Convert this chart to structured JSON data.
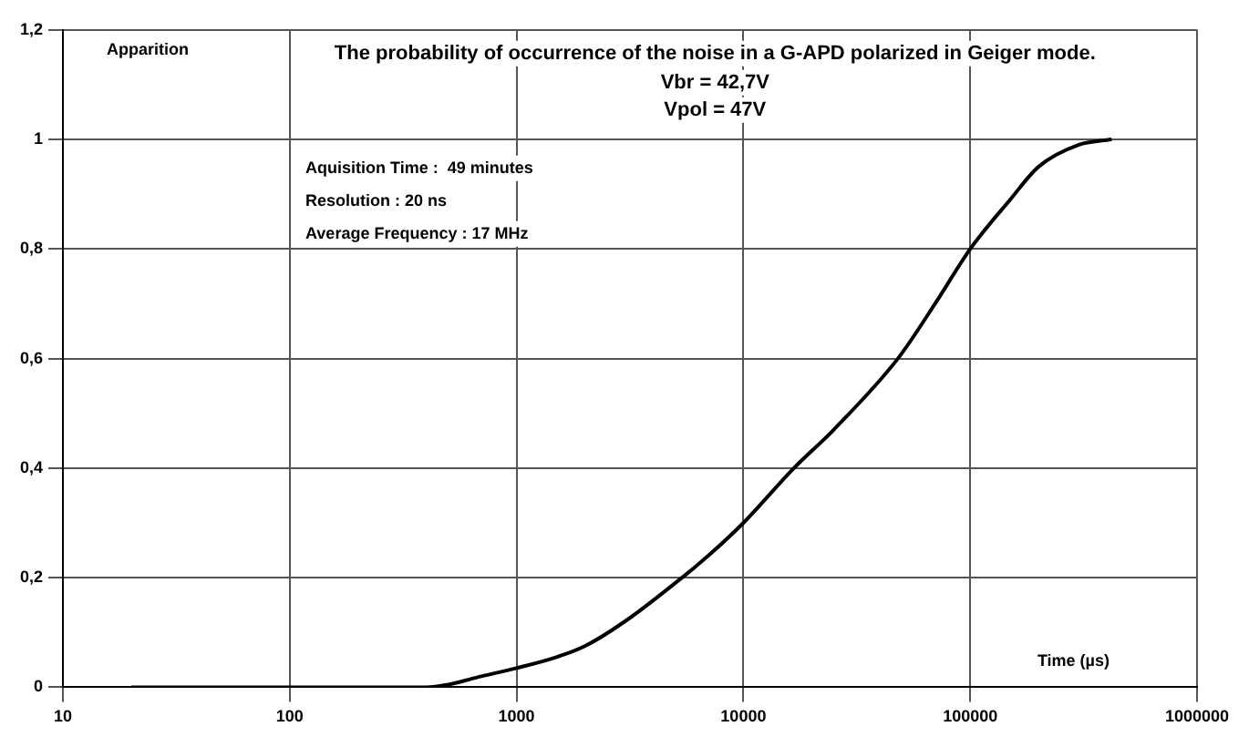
{
  "chart_data": {
    "type": "line",
    "title": "The probability of occurrence of the noise in a G-APD polarized in Geiger mode.",
    "subtitle": "Vbr = 42,7V\nVpol = 47V",
    "ylabel": "Apparition",
    "xlabel": "Time (µs)",
    "annotations": [
      "Aquisition Time :  49 minutes",
      "Resolution : 20 ns",
      "Average Frequency : 17 MHz"
    ],
    "x": [
      20,
      100,
      300,
      400,
      500,
      700,
      1000,
      1500,
      2000,
      3000,
      5000,
      7000,
      10000,
      16700,
      25000,
      48000,
      70000,
      100000,
      150000,
      200000,
      300000,
      420000
    ],
    "series": [
      {
        "color": "#000000",
        "values": [
          0,
          0,
          0,
          0,
          0.005,
          0.02,
          0.035,
          0.055,
          0.075,
          0.12,
          0.19,
          0.24,
          0.3,
          0.4,
          0.47,
          0.6,
          0.7,
          0.8,
          0.89,
          0.95,
          0.99,
          1
        ]
      }
    ],
    "log": "x",
    "xlim": [
      10,
      1000000
    ],
    "xticks": [
      10,
      100,
      1000,
      10000,
      100000,
      1000000
    ],
    "ylim": [
      0,
      1.2
    ],
    "yticks": [
      0,
      {
        "value": 0.2,
        "label": "0,2"
      },
      {
        "value": 0.4,
        "label": "0,4"
      },
      {
        "value": 0.6,
        "label": "0,6"
      },
      {
        "value": 0.8,
        "label": "0,8"
      },
      1,
      {
        "value": 1.2,
        "label": "1,2"
      }
    ],
    "grid": true,
    "legend": false,
    "marker": "none",
    "line_style": "solid"
  }
}
